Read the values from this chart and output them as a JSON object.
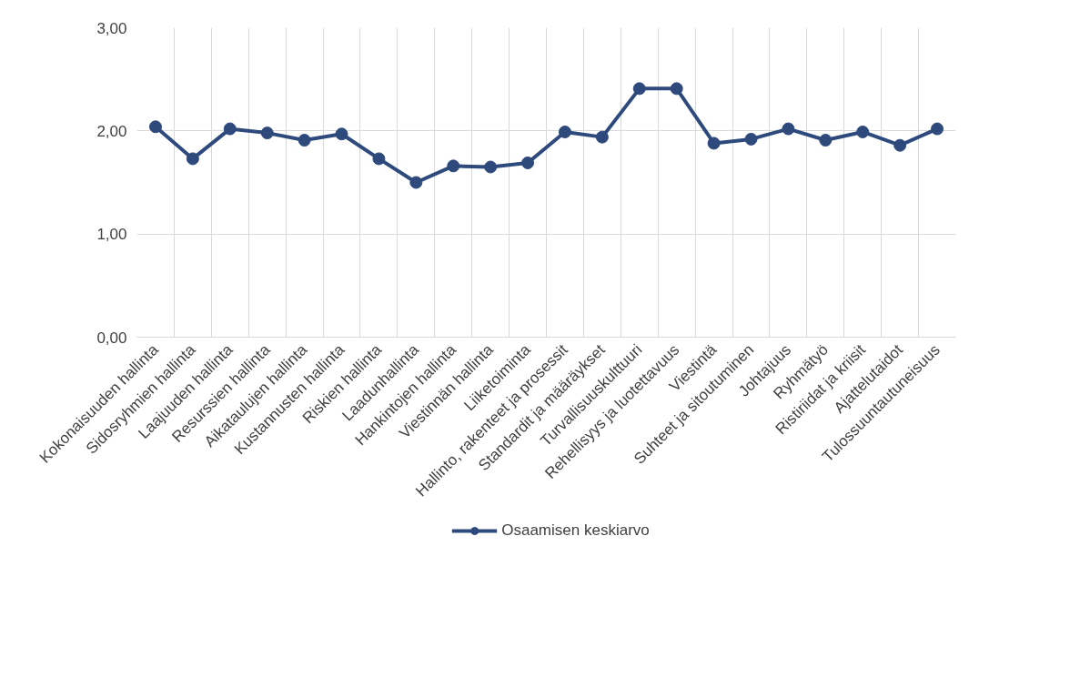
{
  "chart_data": {
    "type": "line",
    "categories": [
      "Kokonaisuuden hallinta",
      "Sidosryhmien hallinta",
      "Laajuuden hallinta",
      "Resurssien hallinta",
      "Aikataulujen hallinta",
      "Kustannusten hallinta",
      "Riskien hallinta",
      "Laadunhallinta",
      "Hankintojen hallinta",
      "Viestinnän hallinta",
      "Liiketoiminta",
      "Hallinto, rakenteet ja prosessit",
      "Standardit ja määräykset",
      "Turvallisuuskulttuuri",
      "Rehellisyys ja luotettavuus",
      "Viestintä",
      "Suhteet ja sitoutuminen",
      "Johtajuus",
      "Ryhmätyö",
      "Ristiriidat ja kriisit",
      "Ajattelutaidot",
      "Tulossuuntautuneisuus"
    ],
    "series": [
      {
        "name": "Osaamisen keskiarvo",
        "color": "#2e4a7d",
        "values": [
          2.04,
          1.73,
          2.02,
          1.98,
          1.91,
          1.97,
          1.73,
          1.5,
          1.66,
          1.65,
          1.69,
          1.99,
          1.94,
          2.41,
          2.41,
          1.88,
          1.92,
          2.02,
          1.91,
          1.99,
          1.86,
          2.02
        ]
      }
    ],
    "ylim": [
      0,
      3
    ],
    "yticks": [
      {
        "value": 0,
        "label": "0,00"
      },
      {
        "value": 1,
        "label": "1,00"
      },
      {
        "value": 2,
        "label": "2,00"
      },
      {
        "value": 3,
        "label": "3,00"
      }
    ],
    "grid": true,
    "legend": "bottom",
    "marker": "circle",
    "line_style": "solid"
  }
}
